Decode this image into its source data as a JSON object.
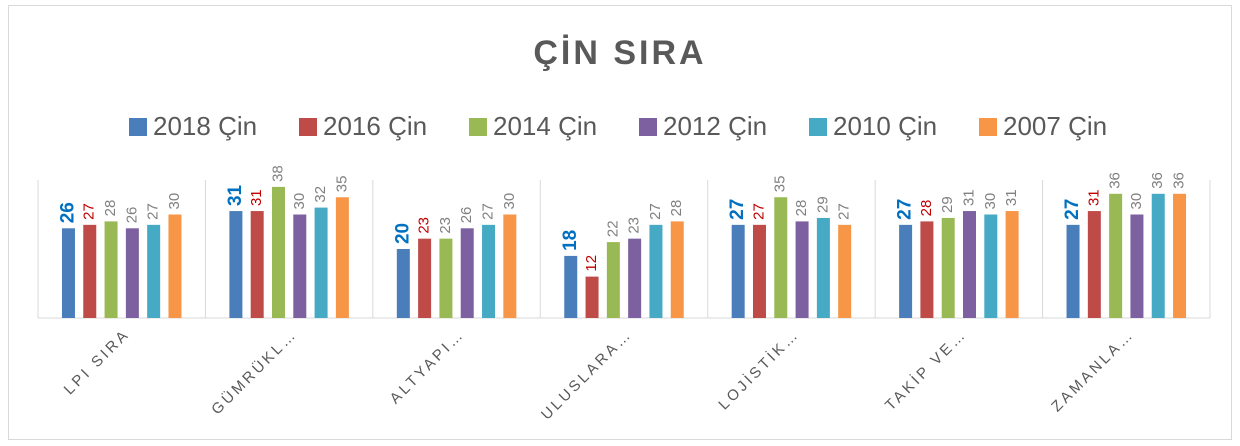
{
  "chart_data": {
    "type": "bar",
    "title": "ÇİN SIRA",
    "categories": [
      "LPI SIRA",
      "GÜMRÜKL…",
      "ALTYAPI…",
      "ULUSLARA…",
      "LOJİSTİK…",
      "TAKİP VE…",
      "ZAMANLA…"
    ],
    "series": [
      {
        "name": "2018 Çin",
        "color": "#4a7ebb",
        "label_color": "#0070c0",
        "values": [
          26,
          31,
          20,
          18,
          27,
          27,
          27
        ]
      },
      {
        "name": "2016 Çin",
        "color": "#be4b48",
        "label_color": "#c00000",
        "values": [
          27,
          31,
          23,
          12,
          27,
          28,
          31
        ]
      },
      {
        "name": "2014 Çin",
        "color": "#98b954",
        "label_color": "#808080",
        "values": [
          28,
          38,
          23,
          22,
          35,
          29,
          36
        ]
      },
      {
        "name": "2012 Çin",
        "color": "#7d60a0",
        "label_color": "#808080",
        "values": [
          26,
          30,
          26,
          23,
          28,
          31,
          30
        ]
      },
      {
        "name": "2010 Çin",
        "color": "#46aac5",
        "label_color": "#808080",
        "values": [
          27,
          32,
          27,
          27,
          29,
          30,
          36
        ]
      },
      {
        "name": "2007 Çin",
        "color": "#f79646",
        "label_color": "#808080",
        "values": [
          30,
          35,
          30,
          28,
          27,
          31,
          36
        ]
      }
    ],
    "ylim": [
      0,
      40
    ],
    "legend": "top"
  }
}
